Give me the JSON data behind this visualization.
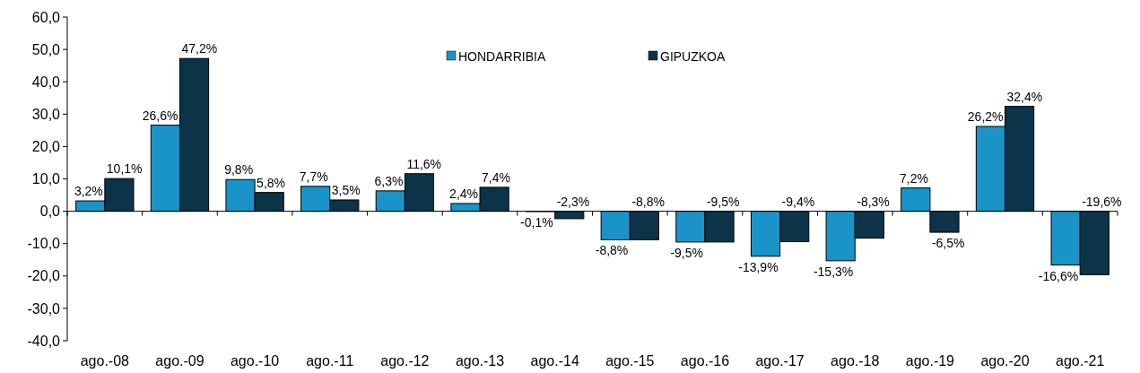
{
  "chart_data": {
    "type": "bar",
    "categories": [
      "ago.-08",
      "ago.-09",
      "ago.-10",
      "ago.-11",
      "ago.-12",
      "ago.-13",
      "ago.-14",
      "ago.-15",
      "ago.-16",
      "ago.-17",
      "ago.-18",
      "ago.-19",
      "ago.-20",
      "ago.-21"
    ],
    "series": [
      {
        "name": "HONDARRIBIA",
        "color": "#1a93c8",
        "values": [
          3.2,
          26.6,
          9.8,
          7.7,
          6.3,
          2.4,
          -0.1,
          -8.8,
          -9.5,
          -13.9,
          -15.3,
          7.2,
          26.2,
          -16.6
        ],
        "value_labels": [
          "3,2%",
          "26,6%",
          "9,8%",
          "7,7%",
          "6,3%",
          "2,4%",
          "-0,1%",
          "-8,8%",
          "-9,5%",
          "-13,9%",
          "-15,3%",
          "7,2%",
          "26,2%",
          "-16,6%"
        ]
      },
      {
        "name": "GIPUZKOA",
        "color": "#0b3448",
        "values": [
          10.1,
          47.2,
          5.8,
          3.5,
          11.6,
          7.4,
          -2.3,
          -8.8,
          -9.5,
          -9.4,
          -8.3,
          -6.5,
          32.4,
          -19.6
        ],
        "value_labels": [
          "10,1%",
          "47,2%",
          "5,8%",
          "3,5%",
          "11,6%",
          "7,4%",
          "-2,3%",
          "-8,8%",
          "-9,5%",
          "-9,4%",
          "-8,3%",
          "-6,5%",
          "32,4%",
          "-19,6%"
        ]
      }
    ],
    "ylim": [
      -40,
      60
    ],
    "yticks": [
      {
        "value": -40,
        "label": "-40,0"
      },
      {
        "value": -30,
        "label": "-30,0"
      },
      {
        "value": -20,
        "label": "-20,0"
      },
      {
        "value": -10,
        "label": "-10,0"
      },
      {
        "value": 0,
        "label": "0,0"
      },
      {
        "value": 10,
        "label": "10,0"
      },
      {
        "value": 20,
        "label": "20,0"
      },
      {
        "value": 30,
        "label": "30,0"
      },
      {
        "value": 40,
        "label": "40,0"
      },
      {
        "value": 50,
        "label": "50,0"
      },
      {
        "value": 60,
        "label": "60,0"
      }
    ],
    "legend": "top"
  }
}
